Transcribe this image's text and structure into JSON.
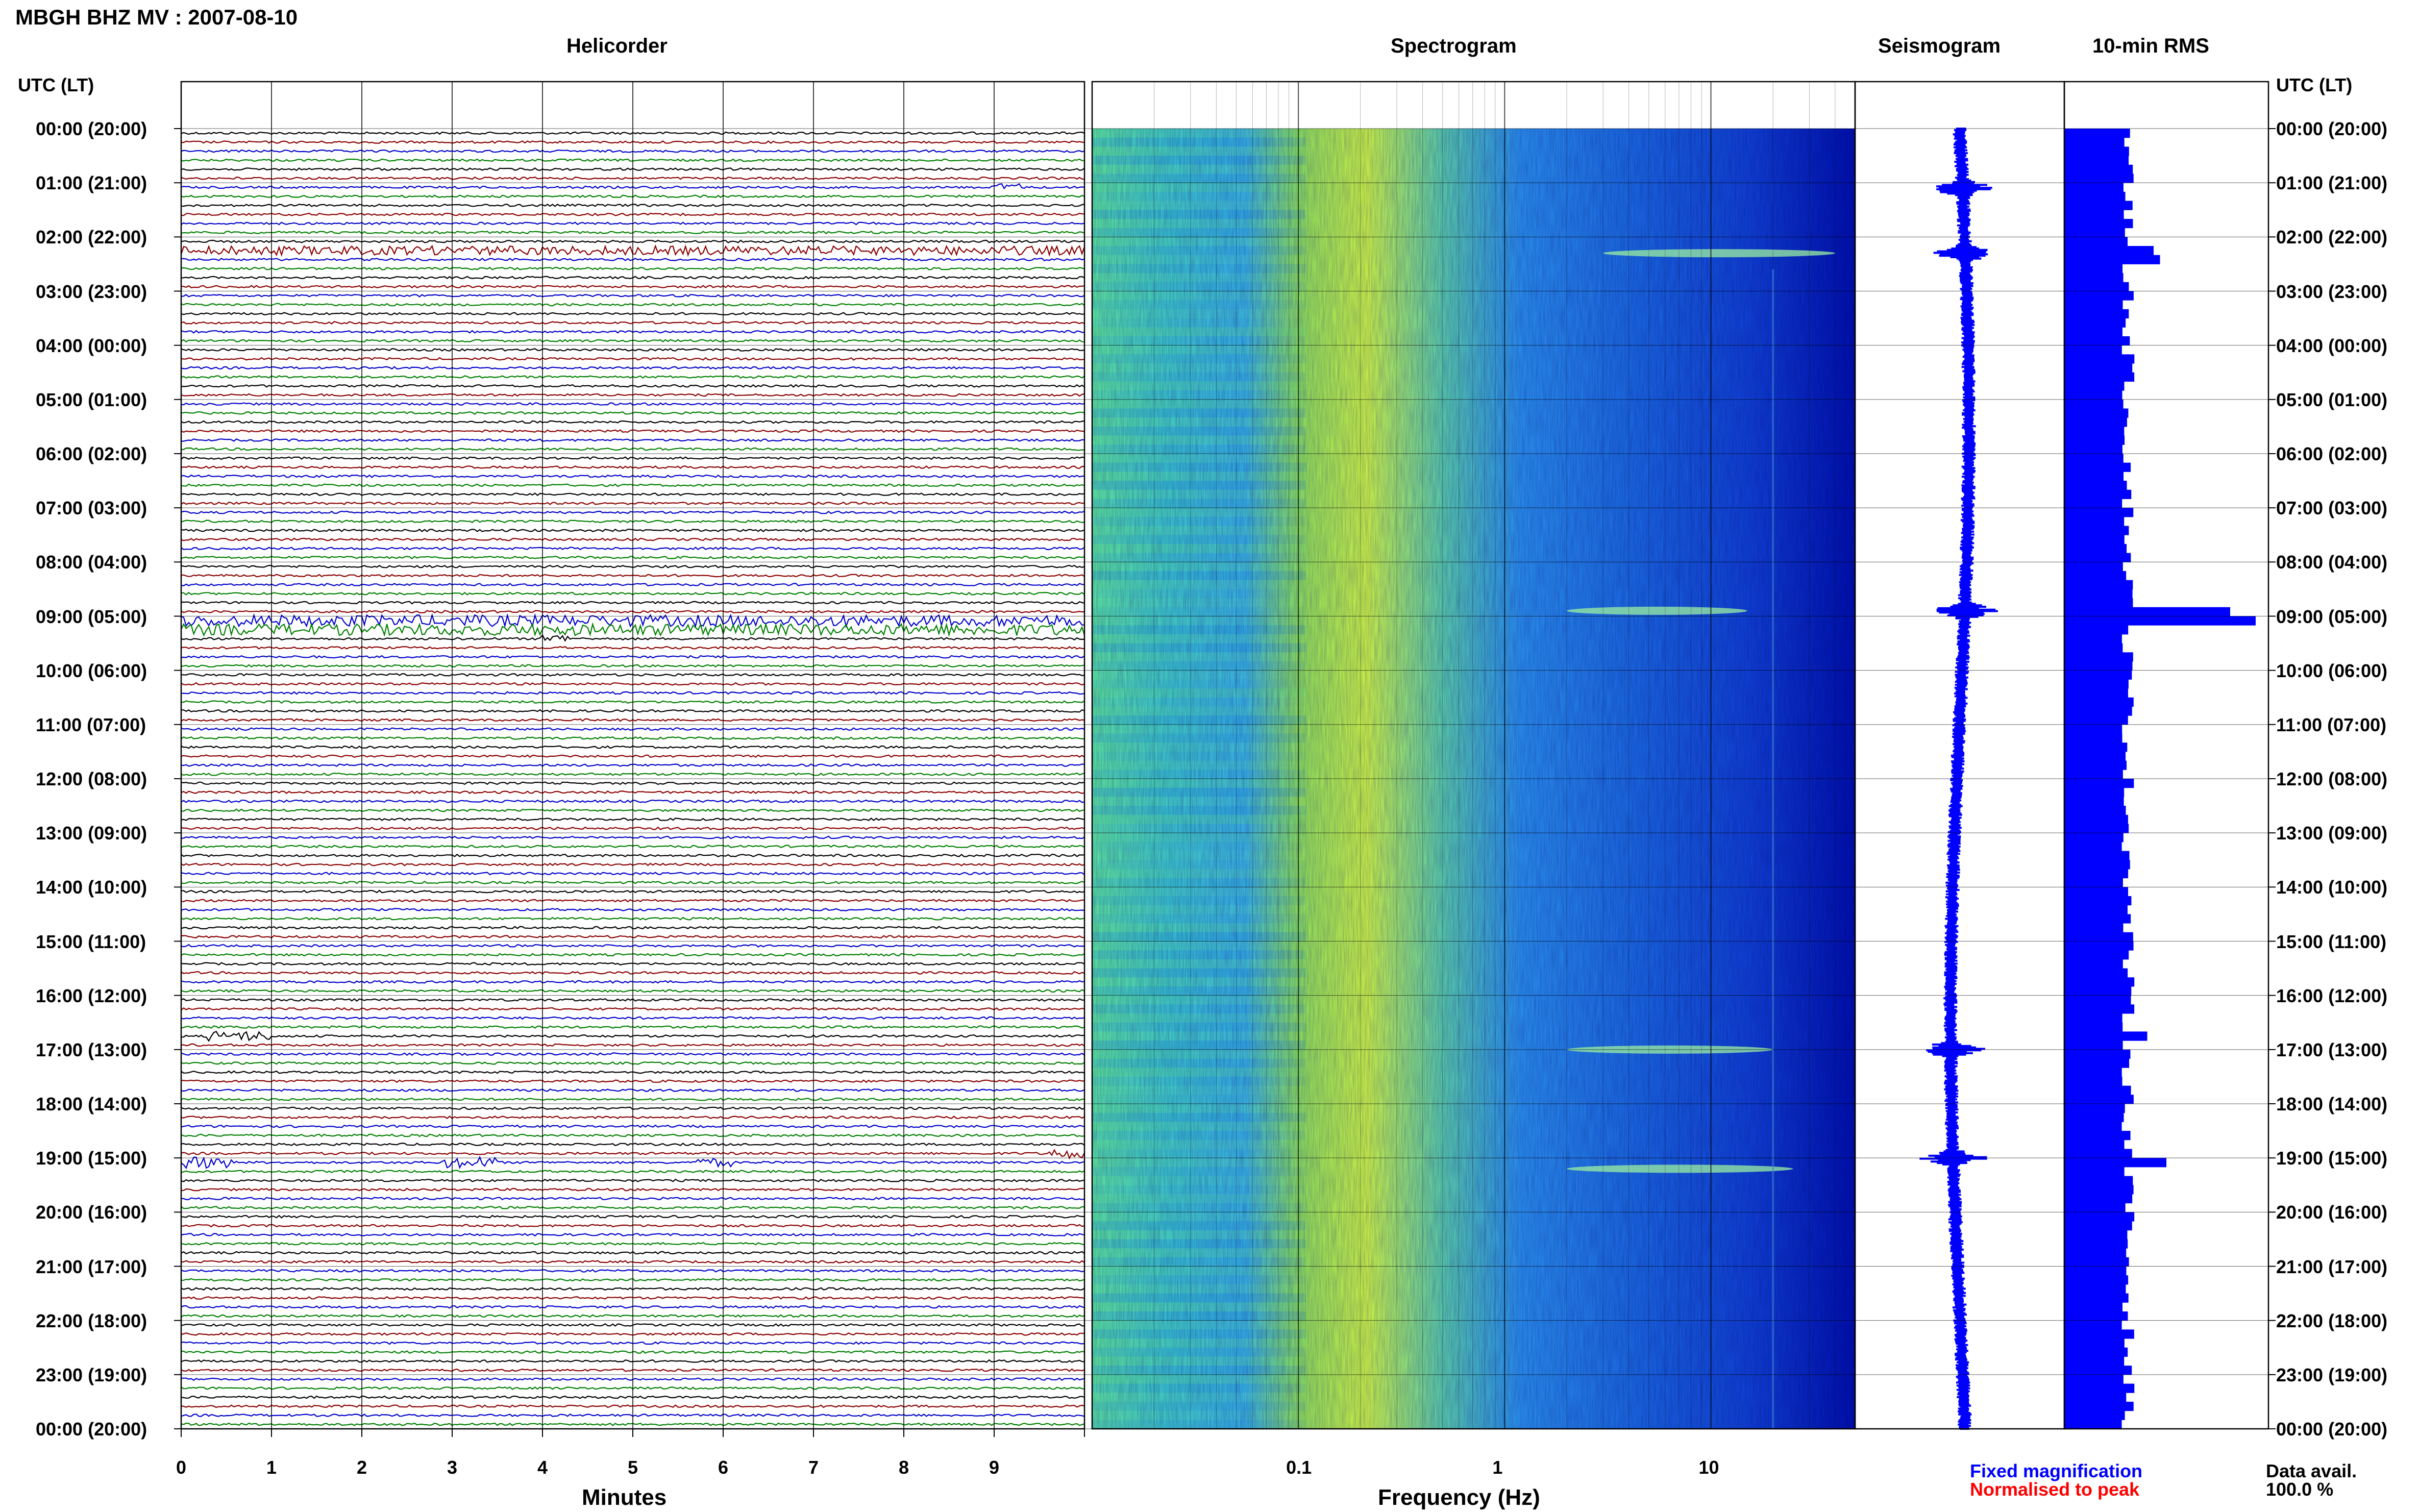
{
  "title": "MBGH BHZ MV : 2007-08-10",
  "panels": {
    "helicorder": "Helicorder",
    "spectrogram": "Spectrogram",
    "seismogram": "Seismogram",
    "rms": "10-min RMS"
  },
  "utc_lt_label": "UTC (LT)",
  "time_labels": [
    "00:00 (20:00)",
    "01:00 (21:00)",
    "02:00 (22:00)",
    "03:00 (23:00)",
    "04:00 (00:00)",
    "05:00 (01:00)",
    "06:00 (02:00)",
    "07:00 (03:00)",
    "08:00 (04:00)",
    "09:00 (05:00)",
    "10:00 (06:00)",
    "11:00 (07:00)",
    "12:00 (08:00)",
    "13:00 (09:00)",
    "14:00 (10:00)",
    "15:00 (11:00)",
    "16:00 (12:00)",
    "17:00 (13:00)",
    "18:00 (14:00)",
    "19:00 (15:00)",
    "20:00 (16:00)",
    "21:00 (17:00)",
    "22:00 (18:00)",
    "23:00 (19:00)",
    "00:00 (20:00)"
  ],
  "x_labels": {
    "minutes": "Minutes",
    "frequency": "Frequency (Hz)"
  },
  "minute_ticks": [
    "0",
    "1",
    "2",
    "3",
    "4",
    "5",
    "6",
    "7",
    "8",
    "9"
  ],
  "frequency_ticks": [
    "0.1",
    "1",
    "10"
  ],
  "legend": {
    "fixed": "Fixed magnification",
    "normalised": "Normalised to peak",
    "fixed_color": "#0000ff",
    "normalised_color": "#ff0000"
  },
  "data_avail": {
    "label": "Data avail.",
    "value": "100.0 %"
  },
  "colors": {
    "trace_cycle": [
      "#000000",
      "#8b0000",
      "#0000cd",
      "#008000"
    ],
    "rms_fill": "#0000ff",
    "seismogram": "#0000ff"
  },
  "chart_data": [
    {
      "type": "line",
      "name": "helicorder",
      "title": "Helicorder",
      "xlabel": "Minutes",
      "xlim": [
        0,
        10
      ],
      "rows": 144,
      "row_minutes": 10,
      "events": [
        {
          "row": 13,
          "start_min": 0.0,
          "end_min": 10.0,
          "amp": 2.2
        },
        {
          "row": 54,
          "start_min": 0.0,
          "end_min": 10.0,
          "amp": 3.0
        },
        {
          "row": 55,
          "start_min": 0.0,
          "end_min": 10.0,
          "amp": 3.0
        },
        {
          "row": 56,
          "start_min": 4.0,
          "end_min": 4.3,
          "amp": 2.0
        },
        {
          "row": 100,
          "start_min": 0.3,
          "end_min": 1.0,
          "amp": 2.5
        },
        {
          "row": 114,
          "start_min": 0.0,
          "end_min": 0.6,
          "amp": 3.0
        },
        {
          "row": 114,
          "start_min": 2.9,
          "end_min": 3.5,
          "amp": 3.0
        },
        {
          "row": 114,
          "start_min": 5.7,
          "end_min": 6.1,
          "amp": 2.0
        },
        {
          "row": 113,
          "start_min": 9.6,
          "end_min": 10.0,
          "amp": 2.5
        },
        {
          "row": 6,
          "start_min": 9.0,
          "end_min": 9.3,
          "amp": 2.0
        }
      ]
    },
    {
      "type": "heatmap",
      "name": "spectrogram",
      "title": "Spectrogram",
      "xlabel": "Frequency (Hz)",
      "x_scale": "log",
      "xlim": [
        0.01,
        50
      ],
      "ylim_hours": [
        0,
        24
      ],
      "bands": [
        {
          "hour": 2.3,
          "f_start": 3,
          "f_end": 40
        },
        {
          "hour": 8.9,
          "f_start": 2,
          "f_end": 15
        },
        {
          "hour": 17.0,
          "f_start": 2,
          "f_end": 20
        },
        {
          "hour": 19.2,
          "f_start": 2,
          "f_end": 25
        }
      ]
    },
    {
      "type": "line",
      "name": "seismogram",
      "title": "Seismogram",
      "ylim_hours": [
        0,
        24
      ],
      "spikes_hours": [
        1.1,
        2.3,
        8.9,
        17.0,
        19.0
      ]
    },
    {
      "type": "bar",
      "name": "rms",
      "title": "10-min RMS",
      "orientation": "horizontal",
      "bins": 144,
      "baseline": 1.0,
      "peaks": [
        {
          "bin": 13,
          "value": 1.4
        },
        {
          "bin": 14,
          "value": 1.5
        },
        {
          "bin": 53,
          "value": 2.6
        },
        {
          "bin": 54,
          "value": 3.0
        },
        {
          "bin": 100,
          "value": 1.3
        },
        {
          "bin": 114,
          "value": 1.6
        }
      ]
    }
  ]
}
